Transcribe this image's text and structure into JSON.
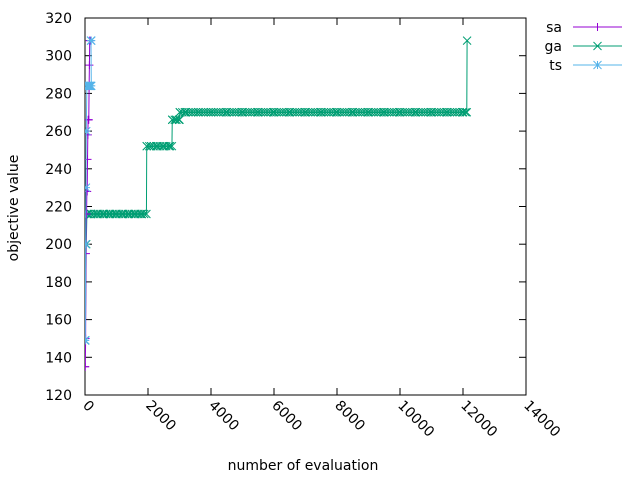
{
  "chart_data": {
    "type": "line",
    "xlabel": "number of evaluation",
    "ylabel": "objective value",
    "xlim": [
      0,
      14000
    ],
    "ylim": [
      120,
      320
    ],
    "x_ticks": [
      "0",
      "2000",
      "4000",
      "6000",
      "8000",
      "10000",
      "12000",
      "14000"
    ],
    "y_ticks": [
      "120",
      "140",
      "160",
      "180",
      "200",
      "220",
      "240",
      "260",
      "280",
      "300",
      "320"
    ],
    "grid": false,
    "legend_position": "top-right outside",
    "series": [
      {
        "name": "sa",
        "color": "#9400d3",
        "marker": "plus",
        "points": [
          [
            0,
            135
          ],
          [
            10,
            135
          ],
          [
            20,
            150
          ],
          [
            30,
            195
          ],
          [
            40,
            216
          ],
          [
            50,
            216
          ],
          [
            60,
            228
          ],
          [
            70,
            228
          ],
          [
            80,
            245
          ],
          [
            90,
            258
          ],
          [
            100,
            266
          ],
          [
            110,
            266
          ],
          [
            120,
            266
          ],
          [
            130,
            283
          ],
          [
            140,
            295
          ],
          [
            150,
            308
          ],
          [
            160,
            308
          ]
        ]
      },
      {
        "name": "ga",
        "color": "#009e73",
        "marker": "cross",
        "points": [
          [
            0,
            149
          ],
          [
            10,
            149
          ],
          [
            40,
            200
          ],
          [
            60,
            216
          ],
          [
            100,
            216
          ],
          [
            200,
            216
          ],
          [
            400,
            216
          ],
          [
            600,
            216
          ],
          [
            800,
            216
          ],
          [
            1000,
            216
          ],
          [
            1200,
            216
          ],
          [
            1400,
            216
          ],
          [
            1600,
            216
          ],
          [
            1800,
            216
          ],
          [
            1950,
            216
          ],
          [
            1960,
            252
          ],
          [
            2100,
            252
          ],
          [
            2300,
            252
          ],
          [
            2500,
            252
          ],
          [
            2700,
            252
          ],
          [
            2760,
            252
          ],
          [
            2770,
            266
          ],
          [
            2900,
            266
          ],
          [
            3000,
            266
          ],
          [
            3010,
            270
          ],
          [
            3200,
            270
          ],
          [
            3600,
            270
          ],
          [
            4000,
            270
          ],
          [
            4500,
            270
          ],
          [
            5000,
            270
          ],
          [
            5500,
            270
          ],
          [
            6000,
            270
          ],
          [
            6500,
            270
          ],
          [
            7000,
            270
          ],
          [
            7500,
            270
          ],
          [
            8000,
            270
          ],
          [
            8500,
            270
          ],
          [
            9000,
            270
          ],
          [
            9500,
            270
          ],
          [
            10000,
            270
          ],
          [
            10500,
            270
          ],
          [
            11000,
            270
          ],
          [
            11500,
            270
          ],
          [
            12000,
            270
          ],
          [
            12120,
            270
          ],
          [
            12130,
            308
          ]
        ]
      },
      {
        "name": "ts",
        "color": "#56b4e9",
        "marker": "star",
        "points": [
          [
            0,
            149
          ],
          [
            10,
            149
          ],
          [
            20,
            200
          ],
          [
            30,
            230
          ],
          [
            40,
            260
          ],
          [
            60,
            284
          ],
          [
            80,
            284
          ],
          [
            100,
            284
          ],
          [
            120,
            284
          ],
          [
            140,
            284
          ],
          [
            160,
            284
          ],
          [
            180,
            284
          ],
          [
            200,
            284
          ],
          [
            190,
            308
          ],
          [
            200,
            308
          ]
        ]
      }
    ]
  }
}
